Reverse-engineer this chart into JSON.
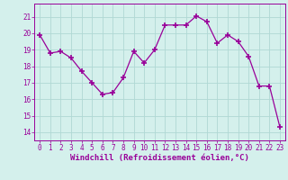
{
  "x": [
    0,
    1,
    2,
    3,
    4,
    5,
    6,
    7,
    8,
    9,
    10,
    11,
    12,
    13,
    14,
    15,
    16,
    17,
    18,
    19,
    20,
    21,
    22,
    23
  ],
  "y": [
    19.9,
    18.8,
    18.9,
    18.5,
    17.7,
    17.0,
    16.3,
    16.4,
    17.3,
    18.9,
    18.2,
    19.0,
    20.5,
    20.5,
    20.5,
    21.05,
    20.7,
    19.4,
    19.9,
    19.5,
    18.6,
    16.8,
    16.8,
    14.3
  ],
  "line_color": "#990099",
  "marker_color": "#990099",
  "bg_color": "#d4f0ec",
  "grid_color": "#b0d8d4",
  "xlabel": "Windchill (Refroidissement éolien,°C)",
  "ylabel_ticks": [
    14,
    15,
    16,
    17,
    18,
    19,
    20,
    21
  ],
  "ylim": [
    13.5,
    21.8
  ],
  "xlim": [
    -0.5,
    23.5
  ],
  "tick_color": "#990099",
  "xlabel_color": "#990099",
  "tick_fontsize": 5.5,
  "xlabel_fontsize": 6.5
}
